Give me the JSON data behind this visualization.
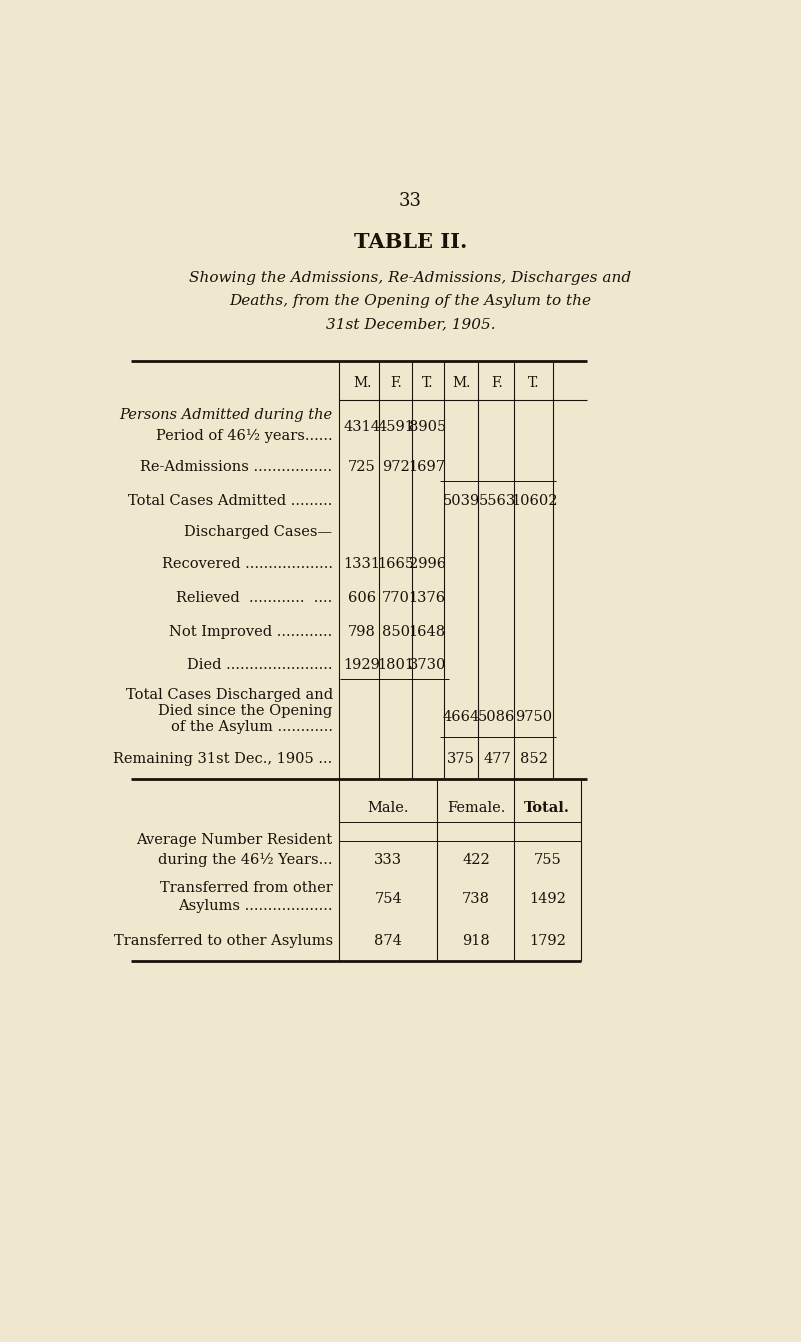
{
  "page_number": "33",
  "title": "TABLE II.",
  "subtitle_lines": [
    "Showing the Admissions, Re-Admissions, Discharges and",
    "Deaths, from the Opening of the Asylum to the",
    "31st December, 1905."
  ],
  "bg_color": "#f0e8ce",
  "text_color": "#1a1208",
  "col_headers": [
    "M.",
    "F.",
    "T.",
    "M.",
    "F.",
    "T."
  ],
  "rows": [
    {
      "label": [
        "Persons Admitted during the",
        "Period of 46½ years......"
      ],
      "label_style": [
        "italic_first",
        "normal"
      ],
      "values": [
        "4314",
        "4591",
        "8905",
        "",
        "",
        ""
      ],
      "pre_hline_cols": [],
      "post_hline_cols": []
    },
    {
      "label": [
        "Re-Admissions ................."
      ],
      "label_style": [
        "normal"
      ],
      "values": [
        "725",
        "972",
        "1697",
        "",
        "",
        ""
      ],
      "pre_hline_cols": [],
      "post_hline_cols": [
        3,
        4,
        5
      ]
    },
    {
      "label": [
        "Total Cases Admitted ........."
      ],
      "label_style": [
        "normal"
      ],
      "values": [
        "",
        "",
        "",
        "5039",
        "5563",
        "10602"
      ],
      "pre_hline_cols": [],
      "post_hline_cols": []
    },
    {
      "label": [
        "Discharged Cases—"
      ],
      "label_style": [
        "normal"
      ],
      "values": [
        "",
        "",
        "",
        "",
        "",
        ""
      ],
      "pre_hline_cols": [],
      "post_hline_cols": [],
      "indent": false
    },
    {
      "label": [
        "Recovered ..................."
      ],
      "label_style": [
        "normal"
      ],
      "values": [
        "1331",
        "1665",
        "2996",
        "",
        "",
        ""
      ],
      "pre_hline_cols": [],
      "post_hline_cols": [],
      "indent": true
    },
    {
      "label": [
        "Relieved  ............  ...."
      ],
      "label_style": [
        "normal"
      ],
      "values": [
        "606",
        "770",
        "1376",
        "",
        "",
        ""
      ],
      "pre_hline_cols": [],
      "post_hline_cols": [],
      "indent": true
    },
    {
      "label": [
        "Not Improved ............"
      ],
      "label_style": [
        "normal"
      ],
      "values": [
        "798",
        "850",
        "1648",
        "",
        "",
        ""
      ],
      "pre_hline_cols": [],
      "post_hline_cols": [],
      "indent": true
    },
    {
      "label": [
        "Died ......................."
      ],
      "label_style": [
        "normal"
      ],
      "values": [
        "1929",
        "1801",
        "3730",
        "",
        "",
        ""
      ],
      "pre_hline_cols": [],
      "post_hline_cols": [
        0,
        1,
        2
      ],
      "indent": true
    },
    {
      "label": [
        "Total Cases Discharged and",
        "Died since the Opening",
        "of the Asylum ............"
      ],
      "label_style": [
        "normal",
        "normal",
        "normal"
      ],
      "values": [
        "",
        "",
        "",
        "4664",
        "5086",
        "9750"
      ],
      "pre_hline_cols": [],
      "post_hline_cols": [
        3,
        4,
        5
      ]
    },
    {
      "label": [
        "Remaining 31st Dec., 1905 ..."
      ],
      "label_style": [
        "normal"
      ],
      "values": [
        "",
        "",
        "",
        "375",
        "477",
        "852"
      ],
      "pre_hline_cols": [],
      "post_hline_cols": []
    }
  ],
  "sec2_headers": [
    "Male.",
    "Female.",
    "Total."
  ],
  "sec2_rows": [
    {
      "label": [
        "Average Number Resident",
        "during the 46½ Years..."
      ],
      "values": [
        "333",
        "422",
        "755"
      ],
      "has_dash_after_first_line": true
    },
    {
      "label": [
        "Transferred from other",
        "Asylums ..................."
      ],
      "values": [
        "754",
        "738",
        "1492"
      ],
      "has_dash_after_first_line": false
    },
    {
      "label": [
        "Transferred to other Asylums"
      ],
      "values": [
        "874",
        "918",
        "1792"
      ],
      "has_dash_after_first_line": false
    }
  ]
}
